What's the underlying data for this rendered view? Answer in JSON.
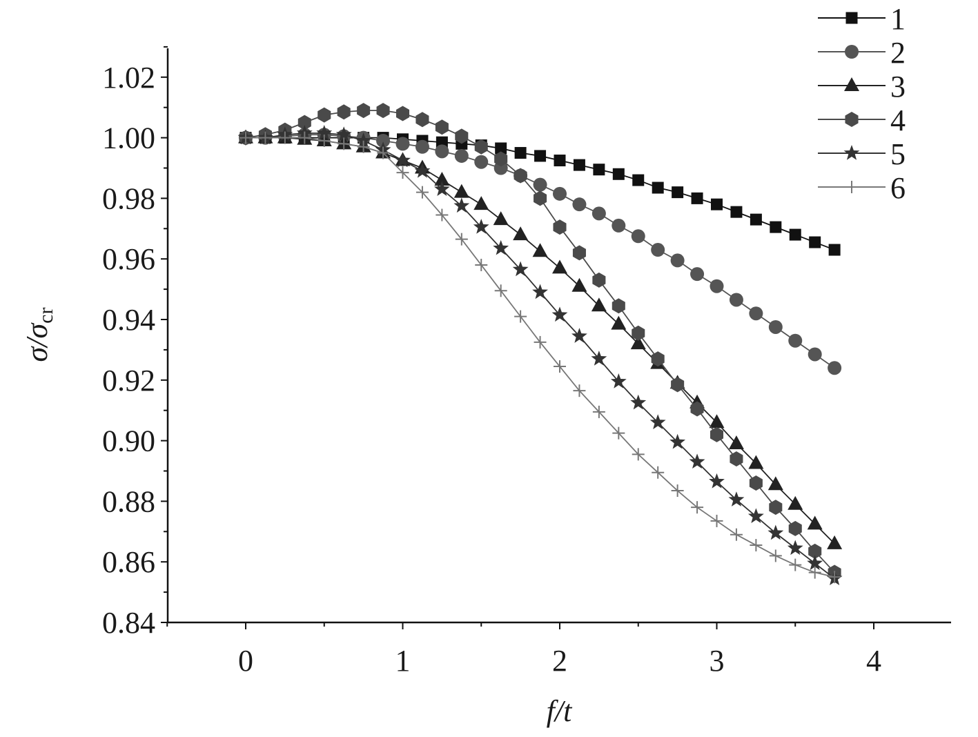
{
  "chart_data": {
    "type": "line",
    "xlabel": "f/t",
    "ylabel": "σ/σcr",
    "ylabel_parts": {
      "main": "σ/σ",
      "sub": "cr"
    },
    "xlim": [
      -0.5,
      4.5
    ],
    "ylim": [
      0.84,
      1.03
    ],
    "x_ticks": [
      0,
      1,
      2,
      3,
      4
    ],
    "x_tick_labels": [
      "0",
      "1",
      "2",
      "3",
      "4"
    ],
    "y_ticks": [
      0.84,
      0.86,
      0.88,
      0.9,
      0.92,
      0.94,
      0.96,
      0.98,
      1.0,
      1.02
    ],
    "y_tick_labels": [
      "0.84",
      "0.86",
      "0.88",
      "0.90",
      "0.92",
      "0.94",
      "0.96",
      "0.98",
      "1.00",
      "1.02"
    ],
    "grid": false,
    "legend_position": "top-right",
    "x": [
      0,
      0.125,
      0.25,
      0.375,
      0.5,
      0.625,
      0.75,
      0.875,
      1.0,
      1.125,
      1.25,
      1.375,
      1.5,
      1.625,
      1.75,
      1.875,
      2.0,
      2.125,
      2.25,
      2.375,
      2.5,
      2.625,
      2.75,
      2.875,
      3.0,
      3.125,
      3.25,
      3.375,
      3.5,
      3.625,
      3.75
    ],
    "series": [
      {
        "name": "1",
        "marker": "square",
        "color": "#111111",
        "values": [
          1.0,
          1.0,
          1.0,
          1.0,
          1.0,
          1.0,
          1.0,
          1.0,
          0.9995,
          0.999,
          0.9985,
          0.998,
          0.9975,
          0.9965,
          0.995,
          0.994,
          0.9925,
          0.991,
          0.9895,
          0.988,
          0.986,
          0.9835,
          0.982,
          0.98,
          0.978,
          0.9755,
          0.973,
          0.9705,
          0.968,
          0.9655,
          0.963
        ]
      },
      {
        "name": "2",
        "marker": "circle",
        "color": "#555555",
        "values": [
          1.0,
          1.0,
          1.0005,
          1.001,
          1.001,
          1.0005,
          1.0,
          0.999,
          0.998,
          0.997,
          0.9955,
          0.994,
          0.992,
          0.99,
          0.9875,
          0.9845,
          0.9815,
          0.978,
          0.975,
          0.971,
          0.9675,
          0.963,
          0.9595,
          0.955,
          0.951,
          0.9465,
          0.942,
          0.9375,
          0.933,
          0.9285,
          0.924
        ]
      },
      {
        "name": "3",
        "marker": "triangle",
        "color": "#222222",
        "values": [
          1.0,
          1.0,
          1.0,
          0.9995,
          0.999,
          0.998,
          0.997,
          0.995,
          0.9925,
          0.99,
          0.986,
          0.982,
          0.978,
          0.973,
          0.968,
          0.9625,
          0.957,
          0.951,
          0.9445,
          0.9385,
          0.932,
          0.9255,
          0.919,
          0.9125,
          0.906,
          0.899,
          0.8925,
          0.8855,
          0.879,
          0.8725,
          0.866
        ]
      },
      {
        "name": "4",
        "marker": "hexagon",
        "color": "#4a4a4a",
        "values": [
          1.0,
          1.001,
          1.0025,
          1.005,
          1.0075,
          1.0085,
          1.009,
          1.009,
          1.008,
          1.006,
          1.0035,
          1.0005,
          0.997,
          0.993,
          0.9875,
          0.98,
          0.9705,
          0.962,
          0.953,
          0.9445,
          0.9355,
          0.927,
          0.9185,
          0.9105,
          0.902,
          0.894,
          0.886,
          0.878,
          0.871,
          0.8635,
          0.8565
        ]
      },
      {
        "name": "5",
        "marker": "star",
        "color": "#333333",
        "values": [
          1.0,
          1.0,
          1.001,
          1.0015,
          1.0015,
          1.001,
          0.999,
          0.996,
          0.9925,
          0.989,
          0.983,
          0.9775,
          0.9705,
          0.9635,
          0.9565,
          0.949,
          0.9415,
          0.9345,
          0.927,
          0.9195,
          0.9125,
          0.906,
          0.8995,
          0.893,
          0.8865,
          0.8805,
          0.875,
          0.8695,
          0.8645,
          0.8595,
          0.8545
        ]
      },
      {
        "name": "6",
        "marker": "plus",
        "color": "#777777",
        "values": [
          1.0,
          1.0,
          1.0,
          1.0,
          0.999,
          0.998,
          0.997,
          0.995,
          0.9885,
          0.982,
          0.9745,
          0.9665,
          0.958,
          0.9495,
          0.941,
          0.9325,
          0.9245,
          0.9165,
          0.9095,
          0.9025,
          0.8955,
          0.8895,
          0.8835,
          0.878,
          0.8735,
          0.869,
          0.8655,
          0.862,
          0.859,
          0.8565,
          0.855
        ]
      }
    ]
  }
}
